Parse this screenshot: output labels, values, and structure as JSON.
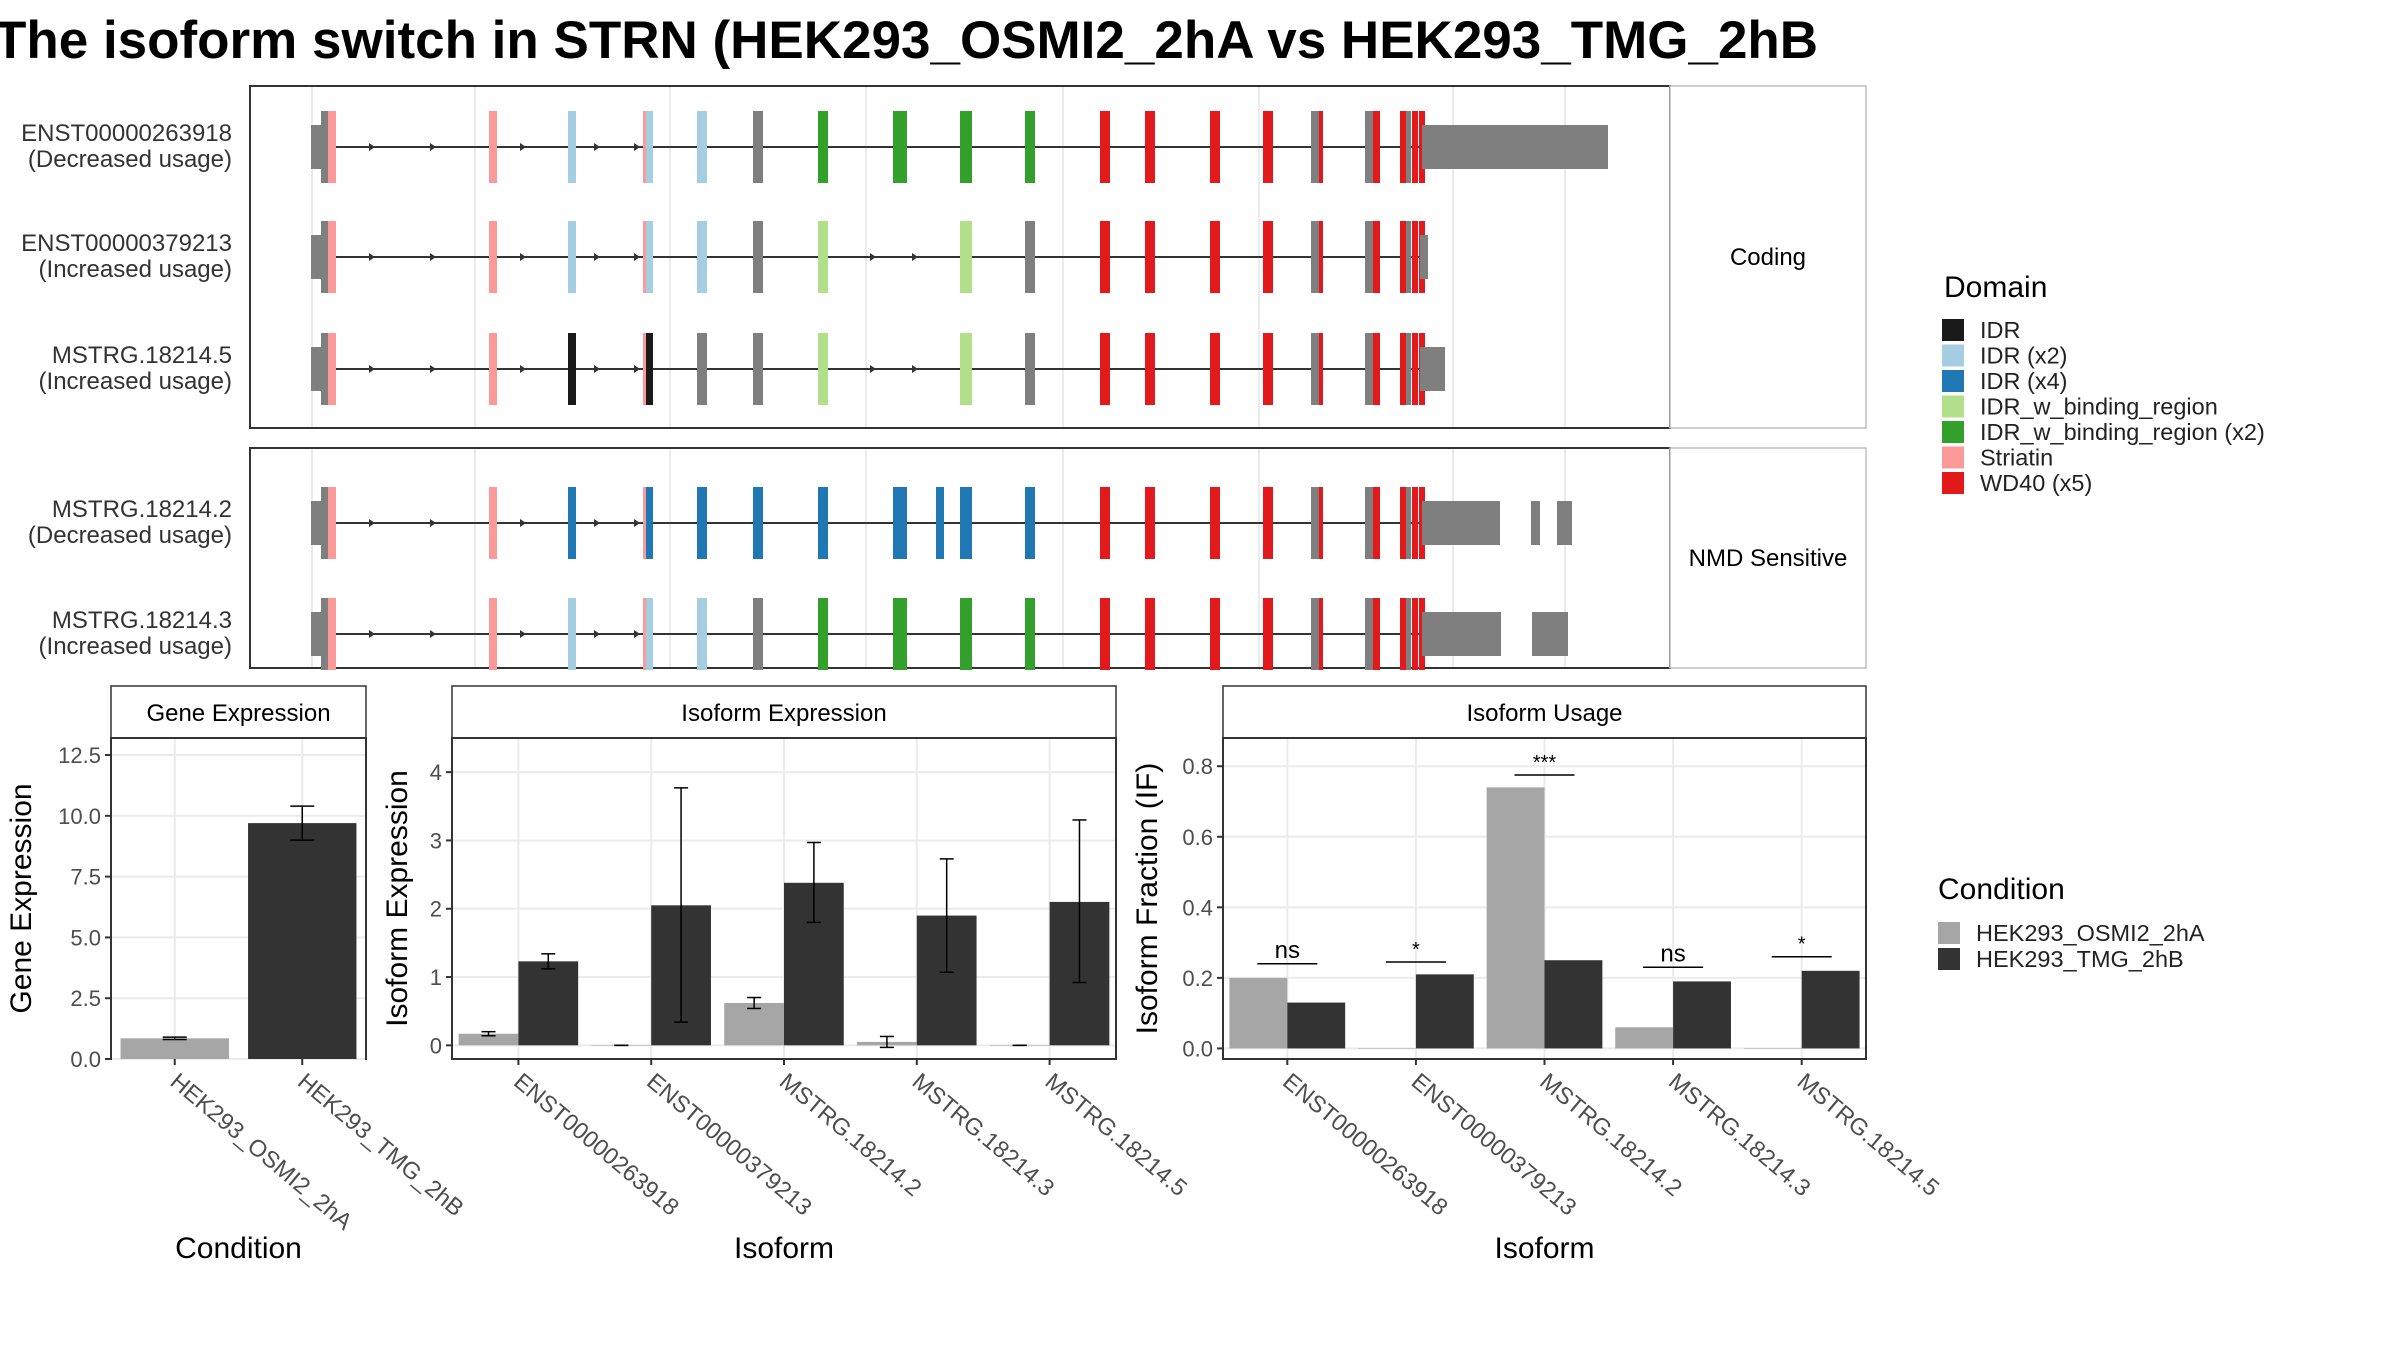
{
  "title": "The isoform switch in STRN (HEK293_OSMI2_2hA vs HEK293_TMG_2hB",
  "colors": {
    "IDR": "#1a1a1a",
    "IDR (x2)": "#a6cee3",
    "IDR (x4)": "#1f78b4",
    "IDR_w_binding_region": "#b2df8a",
    "IDR_w_binding_region (x2)": "#33a02c",
    "Striatin": "#fb9a99",
    "WD40 (x5)": "#e31a1c",
    "noncoding": "#7f7f7f",
    "cond1": "#a6a6a6",
    "cond2": "#333333"
  },
  "legend_domain": {
    "title": "Domain",
    "items": [
      "IDR",
      "IDR (x2)",
      "IDR (x4)",
      "IDR_w_binding_region",
      "IDR_w_binding_region (x2)",
      "Striatin",
      "WD40 (x5)"
    ]
  },
  "legend_condition": {
    "title": "Condition",
    "items": [
      "HEK293_OSMI2_2hA",
      "HEK293_TMG_2hB"
    ]
  },
  "isoform_groups": [
    {
      "strip": "Coding",
      "isoforms": [
        {
          "id": "ENST00000263918",
          "usage": "(Decreased usage)",
          "d": [
            "Striatin",
            "IDR (x2)",
            "IDR (x2)",
            "IDR (x2)",
            "noncoding",
            "IDR_w_binding_region (x2)",
            "IDR_w_binding_region (x2)",
            "IDR_w_binding_region (x2)",
            "IDR_w_binding_region (x2)"
          ],
          "tail": [
            1
          ]
        },
        {
          "id": "ENST00000379213",
          "usage": "(Increased usage)",
          "d": [
            "Striatin",
            "IDR (x2)",
            "IDR (x2)",
            "IDR (x2)",
            "noncoding",
            "IDR_w_binding_region",
            "none",
            "IDR_w_binding_region",
            "noncoding"
          ],
          "tail": [
            2
          ]
        },
        {
          "id": "MSTRG.18214.5",
          "usage": "(Increased usage)",
          "d": [
            "Striatin",
            "IDR",
            "IDR",
            "noncoding",
            "noncoding",
            "IDR_w_binding_region",
            "none",
            "IDR_w_binding_region",
            "noncoding"
          ],
          "tail": [
            3
          ]
        }
      ]
    },
    {
      "strip": "NMD Sensitive",
      "isoforms": [
        {
          "id": "MSTRG.18214.2",
          "usage": "(Decreased usage)",
          "d": [
            "Striatin",
            "IDR (x4)",
            "IDR (x4)",
            "IDR (x4)",
            "IDR (x4)",
            "IDR (x4)",
            "IDR (x4)",
            "IDR (x4)",
            "IDR (x4)"
          ],
          "tail": [
            4
          ]
        },
        {
          "id": "MSTRG.18214.3",
          "usage": "(Increased usage)",
          "d": [
            "Striatin",
            "IDR (x2)",
            "IDR (x2)",
            "IDR (x2)",
            "noncoding",
            "IDR_w_binding_region (x2)",
            "IDR_w_binding_region (x2)",
            "IDR_w_binding_region (x2)",
            "IDR_w_binding_region (x2)"
          ],
          "tail": [
            5
          ]
        }
      ]
    }
  ],
  "chart_data": [
    {
      "type": "bar",
      "title": "Gene Expression",
      "xlabel": "Condition",
      "ylabel": "Gene Expression",
      "ylim": [
        0,
        13.2
      ],
      "yticks": [
        "0.0",
        "2.5",
        "5.0",
        "7.5",
        "10.0",
        "12.5"
      ],
      "categories": [
        "HEK293_OSMI2_2hA",
        "HEK293_TMG_2hB"
      ],
      "values": [
        0.85,
        9.7
      ],
      "errors": [
        [
          0.8,
          0.9
        ],
        [
          9.0,
          10.4
        ]
      ]
    },
    {
      "type": "bar",
      "title": "Isoform Expression",
      "xlabel": "Isoform",
      "ylabel": "Isoform Expression",
      "ylim": [
        -0.2,
        4.5
      ],
      "yticks": [
        "0",
        "1",
        "2",
        "3",
        "4"
      ],
      "categories": [
        "ENST00000263918",
        "ENST00000379213",
        "MSTRG.18214.2",
        "MSTRG.18214.3",
        "MSTRG.18214.5"
      ],
      "series": [
        {
          "name": "HEK293_OSMI2_2hA",
          "values": [
            0.17,
            0.0,
            0.62,
            0.05,
            0.0
          ],
          "errors": [
            [
              0.14,
              0.2
            ],
            [
              0.0,
              0.0
            ],
            [
              0.54,
              0.7
            ],
            [
              -0.03,
              0.13
            ],
            [
              0.0,
              0.0
            ]
          ]
        },
        {
          "name": "HEK293_TMG_2hB",
          "values": [
            1.23,
            2.05,
            2.38,
            1.9,
            2.1
          ],
          "errors": [
            [
              1.12,
              1.34
            ],
            [
              0.34,
              3.77
            ],
            [
              1.8,
              2.97
            ],
            [
              1.07,
              2.73
            ],
            [
              0.92,
              3.3
            ]
          ]
        }
      ]
    },
    {
      "type": "bar",
      "title": "Isoform Usage",
      "xlabel": "Isoform",
      "ylabel": "Isoform Fraction (IF)",
      "ylim": [
        -0.03,
        0.88
      ],
      "yticks": [
        "0.0",
        "0.2",
        "0.4",
        "0.6",
        "0.8"
      ],
      "categories": [
        "ENST00000263918",
        "ENST00000379213",
        "MSTRG.18214.2",
        "MSTRG.18214.3",
        "MSTRG.18214.5"
      ],
      "series": [
        {
          "name": "HEK293_OSMI2_2hA",
          "values": [
            0.2,
            0.0,
            0.74,
            0.06,
            0.0
          ]
        },
        {
          "name": "HEK293_TMG_2hB",
          "values": [
            0.13,
            0.21,
            0.25,
            0.19,
            0.22
          ]
        }
      ],
      "significance": [
        "ns",
        "*",
        "***",
        "ns",
        "*"
      ],
      "sig_at": [
        0.24,
        0.245,
        0.775,
        0.23,
        0.26
      ]
    }
  ]
}
